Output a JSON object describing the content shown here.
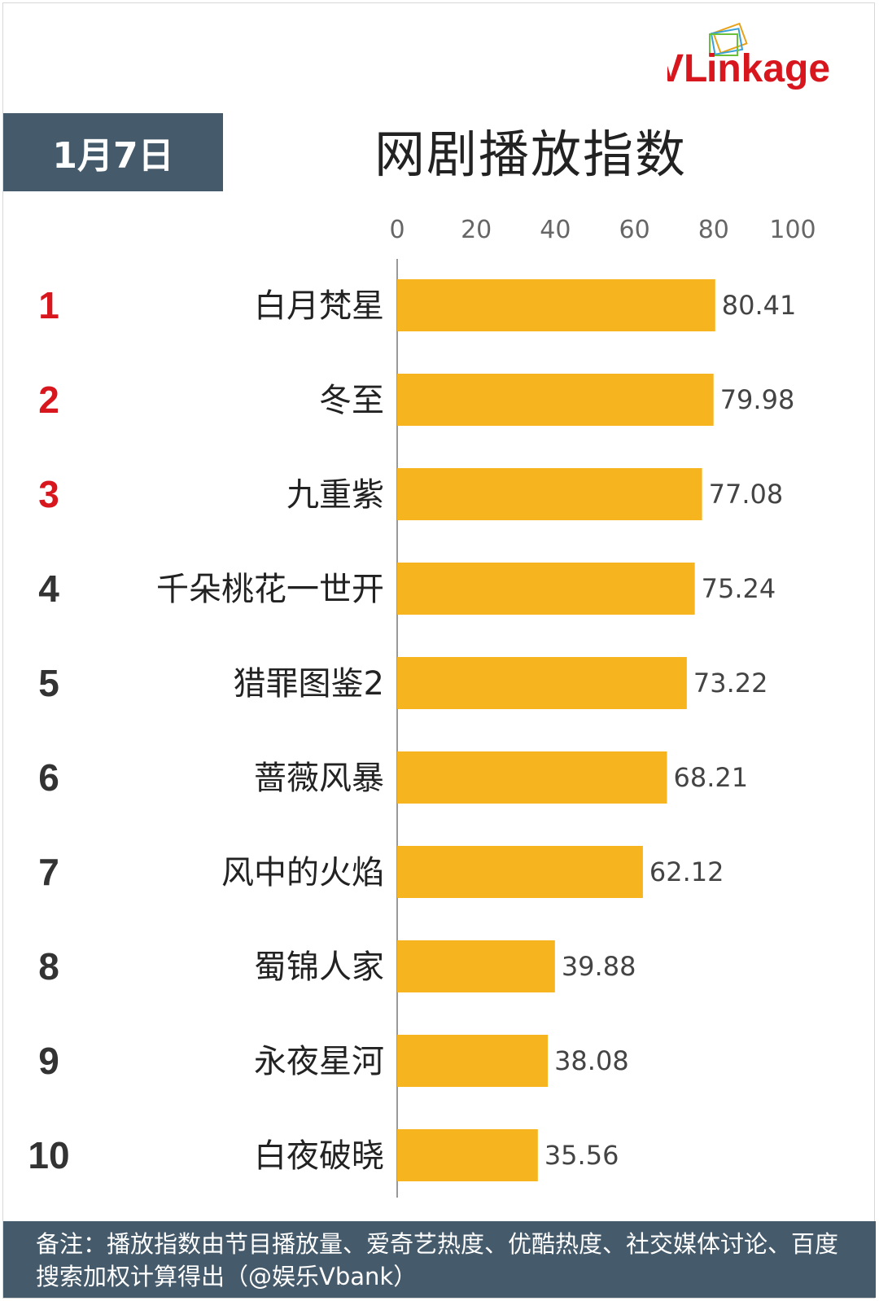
{
  "brand": {
    "logo_text_v": "VL",
    "logo_text_rest": "inkage",
    "accent_red": "#d7161e",
    "accent_gray": "#555555"
  },
  "header": {
    "date_label": "1月7日",
    "title": "网剧播放指数"
  },
  "colors": {
    "bar": "#f6b51e",
    "rank_top": "#d7161e",
    "rank_other": "#333333",
    "band": "#455a6a"
  },
  "chart_data": {
    "type": "bar",
    "orientation": "horizontal",
    "xlim": [
      0,
      100
    ],
    "xticks": [
      "0",
      "20",
      "40",
      "60",
      "80",
      "100"
    ],
    "ranks": [
      "1",
      "2",
      "3",
      "4",
      "5",
      "6",
      "7",
      "8",
      "9",
      "10"
    ],
    "categories": [
      "白月梵星",
      "冬至",
      "九重紫",
      "千朵桃花一世开",
      "猎罪图鉴2",
      "蔷薇风暴",
      "风中的火焰",
      "蜀锦人家",
      "永夜星河",
      "白夜破晓"
    ],
    "values": [
      80.41,
      79.98,
      77.08,
      75.24,
      73.22,
      68.21,
      62.12,
      39.88,
      38.08,
      35.56
    ],
    "value_labels": [
      "80.41",
      "79.98",
      "77.08",
      "75.24",
      "73.22",
      "68.21",
      "62.12",
      "39.88",
      "38.08",
      "35.56"
    ]
  },
  "footer": {
    "note": "备注：播放指数由节目播放量、爱奇艺热度、优酷热度、社交媒体讨论、百度搜索加权计算得出（@娱乐Vbank）"
  }
}
